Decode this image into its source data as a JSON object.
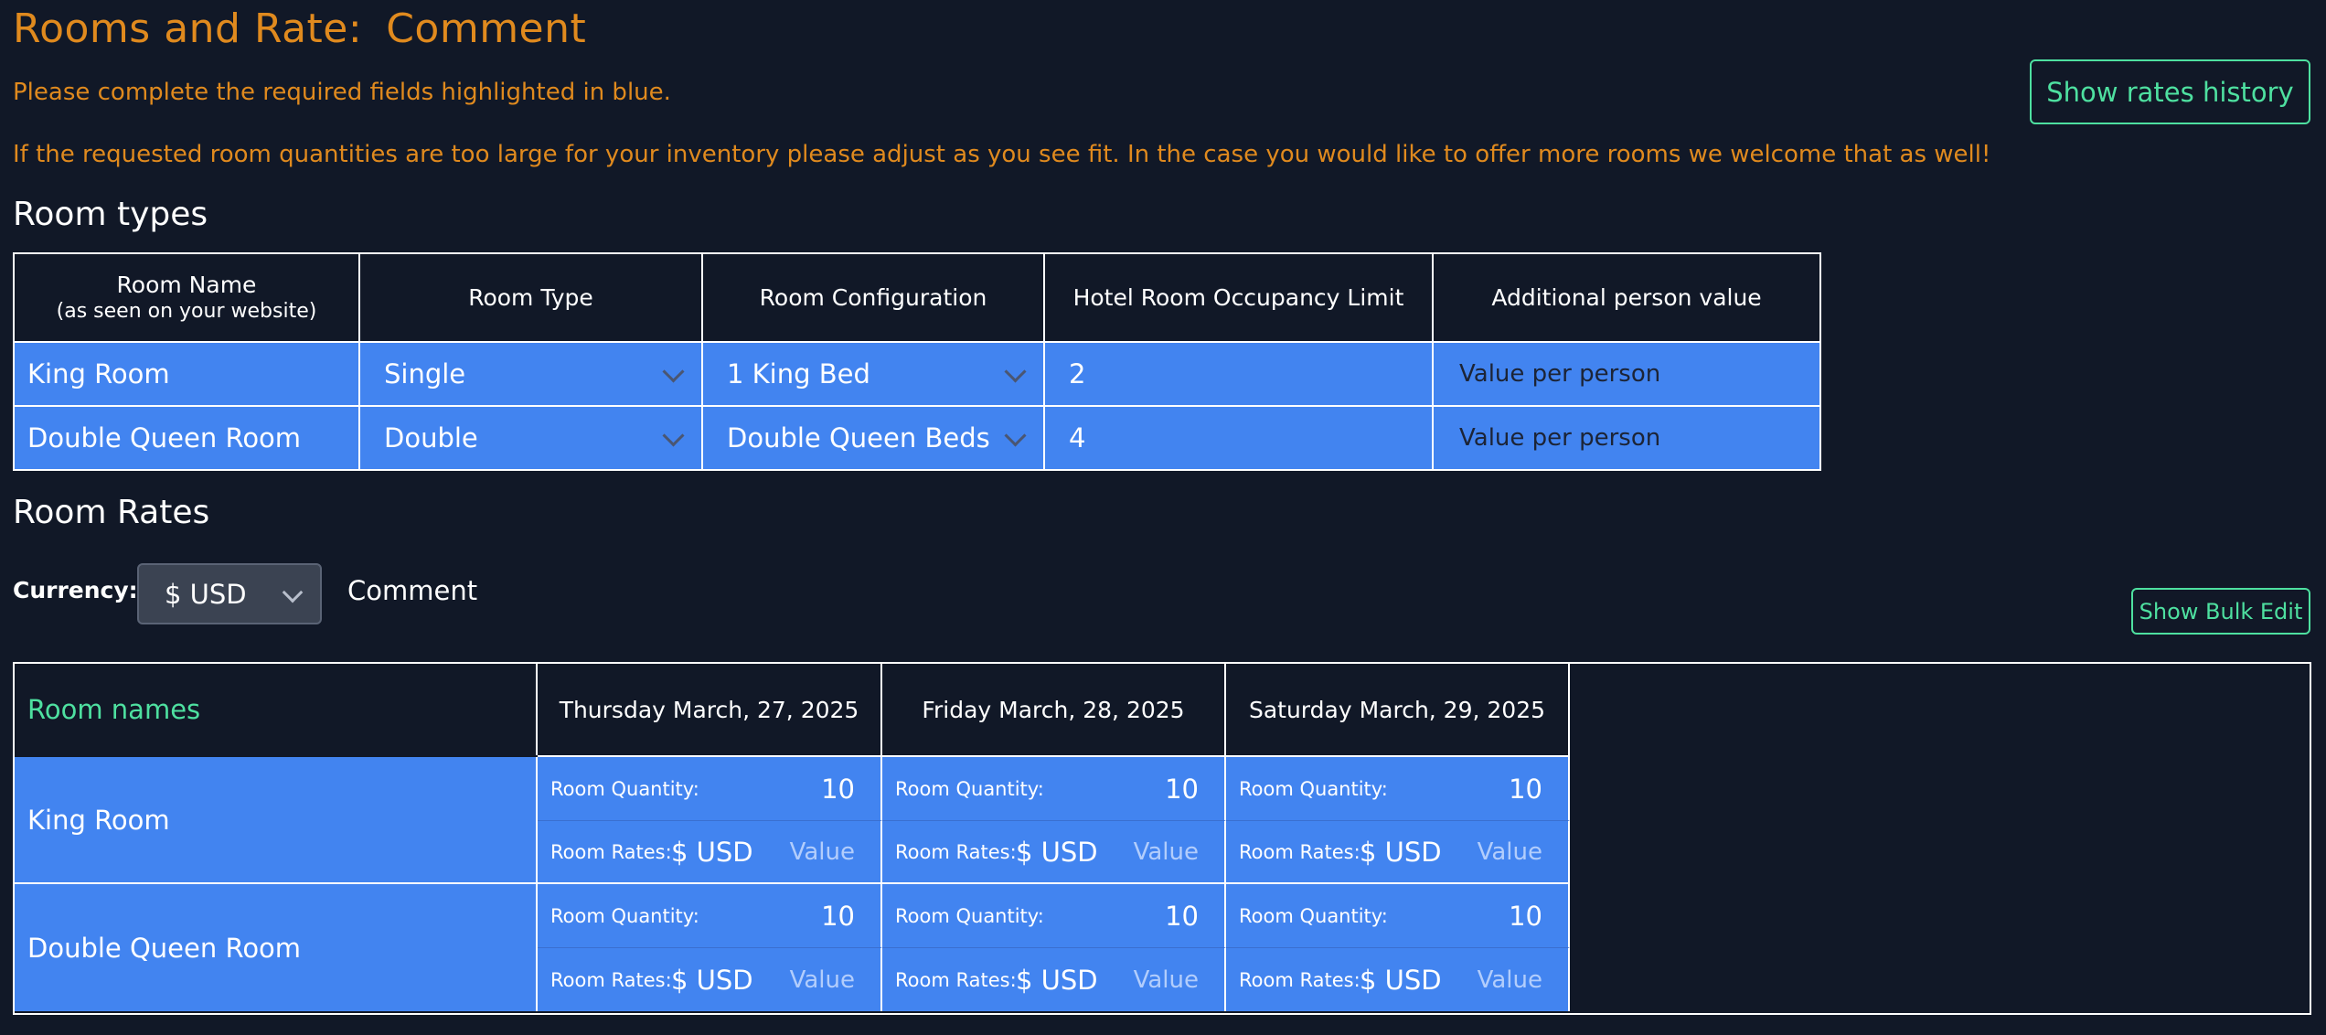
{
  "header": {
    "title_left": "Rooms and Rate:",
    "title_right": "Comment",
    "required_note": "Please complete the required fields highlighted in blue.",
    "inventory_note": "If the requested room quantities are too large for your inventory please adjust as you see fit. In the case you would like to offer more rooms we welcome that as well!",
    "rates_history_button": "Show rates history"
  },
  "room_types": {
    "section_title": "Room types",
    "columns": [
      {
        "label": "Room Name",
        "sub": "(as seen on your website)"
      },
      {
        "label": "Room Type",
        "sub": ""
      },
      {
        "label": "Room Configuration",
        "sub": ""
      },
      {
        "label": "Hotel Room Occupancy Limit",
        "sub": ""
      },
      {
        "label": "Additional person value",
        "sub": ""
      }
    ],
    "rows": [
      {
        "name": "King Room",
        "type": "Single",
        "configuration": "1 King Bed",
        "occupancy": "2",
        "additional_placeholder": "Value per person"
      },
      {
        "name": "Double Queen Room",
        "type": "Double",
        "configuration": "Double Queen Beds",
        "occupancy": "4",
        "additional_placeholder": "Value per person"
      }
    ]
  },
  "room_rates": {
    "section_title": "Room Rates",
    "currency_label": "Currency:",
    "currency_value": "$ USD",
    "comment_label": "Comment",
    "bulk_edit_button": "Show Bulk Edit",
    "room_names_header": "Room names",
    "dates": [
      "Thursday March, 27, 2025",
      "Friday March, 28, 2025",
      "Saturday March, 29, 2025"
    ],
    "quantity_label": "Room Quantity:",
    "rates_label": "Room Rates:",
    "rate_currency": "$ USD",
    "rate_placeholder": "Value",
    "rows": [
      {
        "name": "King Room",
        "quantities": [
          "10",
          "10",
          "10"
        ]
      },
      {
        "name": "Double Queen Room",
        "quantities": [
          "10",
          "10",
          "10"
        ]
      }
    ]
  },
  "colors": {
    "background": "#111827",
    "accent_orange": "#e08a1e",
    "accent_green": "#4ee0a0",
    "required_blue": "#4284f0"
  }
}
